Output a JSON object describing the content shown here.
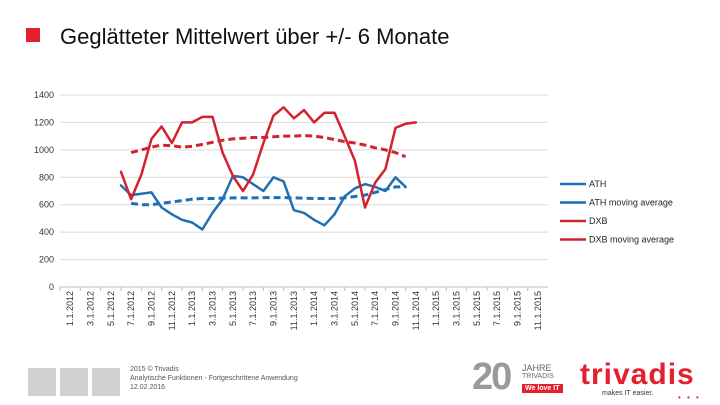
{
  "slide": {
    "title": "Geglätteter Mittelwert über +/- 6 Monate",
    "accent_color": "#e4202e",
    "footer": {
      "line1": "2015 © Trivadis",
      "line2": "Analytische Funktionen - Fortgeschrittene Anwendung",
      "line3": "12.02.2016"
    },
    "badge": {
      "number": "20",
      "word1": "JAHRE",
      "word2": "TRIVADIS",
      "tagline": "We love IT"
    },
    "logo": {
      "name": "trivadis",
      "tagline": "makes IT easier.",
      "dots": "• • •"
    }
  },
  "chart_data": {
    "type": "line",
    "title": "Geglätteter Mittelwert über +/- 6 Monate",
    "xlabel": "",
    "ylabel": "",
    "ylim": [
      0,
      1400
    ],
    "yticks": [
      0,
      200,
      400,
      600,
      800,
      1000,
      1200,
      1400
    ],
    "grid": true,
    "legend_position": "right",
    "x_labels": [
      "1.1.2012",
      "3.1.2012",
      "5.1.2012",
      "7.1.2012",
      "9.1.2012",
      "11.1.2012",
      "1.1.2013",
      "3.1.2013",
      "5.1.2013",
      "7.1.2013",
      "9.1.2013",
      "11.1.2013",
      "1.1.2014",
      "3.1.2014",
      "5.1.2014",
      "7.1.2014",
      "9.1.2014",
      "11.1.2014",
      "1.1.2015",
      "3.1.2015",
      "5.1.2015",
      "7.1.2015",
      "9.1.2015",
      "11.1.2015"
    ],
    "x_start": 2012.0,
    "x_end": 2016.0,
    "series": [
      {
        "name": "ATH",
        "color": "#1f6fb2",
        "style": "solid",
        "x": [
          2012.5,
          2012.583,
          2012.667,
          2012.75,
          2012.833,
          2012.917,
          2013.0,
          2013.083,
          2013.167,
          2013.25,
          2013.333,
          2013.417,
          2013.5,
          2013.583,
          2013.667,
          2013.75,
          2013.833,
          2013.917,
          2014.0,
          2014.083,
          2014.167,
          2014.25,
          2014.333,
          2014.417,
          2014.5,
          2014.583,
          2014.667,
          2014.75,
          2014.833
        ],
        "values": [
          740,
          670,
          680,
          690,
          580,
          530,
          490,
          470,
          420,
          540,
          640,
          810,
          800,
          750,
          700,
          800,
          770,
          560,
          540,
          490,
          450,
          530,
          660,
          720,
          750,
          730,
          700,
          800,
          730
        ]
      },
      {
        "name": "ATH moving average",
        "color": "#1f6fb2",
        "style": "dashed",
        "x": [
          2012.583,
          2012.667,
          2012.75,
          2012.833,
          2012.917,
          2013.0,
          2013.083,
          2013.167,
          2013.25,
          2013.333,
          2013.417,
          2013.5,
          2013.583,
          2013.667,
          2013.75,
          2013.833,
          2013.917,
          2014.0,
          2014.083,
          2014.167,
          2014.25,
          2014.333,
          2014.417,
          2014.5,
          2014.583,
          2014.667,
          2014.75,
          2014.833
        ],
        "values": [
          610,
          600,
          600,
          610,
          620,
          630,
          640,
          645,
          645,
          648,
          650,
          650,
          650,
          652,
          652,
          652,
          650,
          648,
          645,
          645,
          645,
          650,
          660,
          670,
          690,
          710,
          730,
          730
        ]
      },
      {
        "name": "DXB",
        "color": "#d3222f",
        "style": "solid",
        "x": [
          2012.5,
          2012.583,
          2012.667,
          2012.75,
          2012.833,
          2012.917,
          2013.0,
          2013.083,
          2013.167,
          2013.25,
          2013.333,
          2013.417,
          2013.5,
          2013.583,
          2013.667,
          2013.75,
          2013.833,
          2013.917,
          2014.0,
          2014.083,
          2014.167,
          2014.25,
          2014.333,
          2014.417,
          2014.5,
          2014.583,
          2014.667,
          2014.75,
          2014.833,
          2014.917
        ],
        "values": [
          840,
          640,
          820,
          1080,
          1170,
          1050,
          1200,
          1200,
          1240,
          1240,
          980,
          810,
          700,
          820,
          1050,
          1250,
          1310,
          1230,
          1290,
          1200,
          1270,
          1270,
          1100,
          920,
          580,
          760,
          860,
          1160,
          1190,
          1200
        ]
      },
      {
        "name": "DXB moving average",
        "color": "#d3222f",
        "style": "dashed",
        "x": [
          2012.583,
          2012.667,
          2012.75,
          2012.833,
          2012.917,
          2013.0,
          2013.083,
          2013.167,
          2013.25,
          2013.333,
          2013.417,
          2013.5,
          2013.583,
          2013.667,
          2013.75,
          2013.833,
          2013.917,
          2014.0,
          2014.083,
          2014.167,
          2014.25,
          2014.333,
          2014.417,
          2014.5,
          2014.583,
          2014.667,
          2014.75,
          2014.833
        ],
        "values": [
          980,
          1000,
          1020,
          1035,
          1030,
          1020,
          1025,
          1040,
          1055,
          1070,
          1080,
          1085,
          1090,
          1090,
          1095,
          1100,
          1100,
          1105,
          1100,
          1090,
          1075,
          1060,
          1050,
          1035,
          1015,
          1000,
          980,
          950
        ]
      }
    ]
  }
}
